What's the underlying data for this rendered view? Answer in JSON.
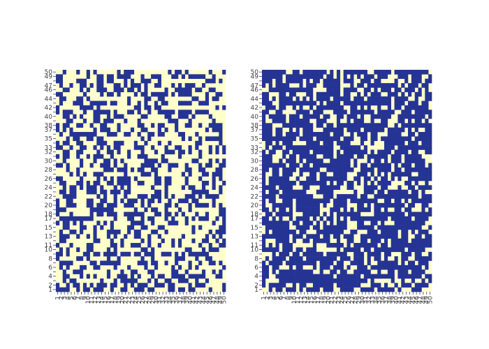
{
  "chart_data": [
    {
      "type": "heatmap",
      "title": "",
      "xlabel": "",
      "ylabel": "",
      "x_ticks": [
        "1",
        "2",
        "3",
        "4",
        "5",
        "6",
        "7",
        "8",
        "9",
        "10",
        "11",
        "12",
        "13",
        "14",
        "15",
        "16",
        "17",
        "18",
        "19",
        "20",
        "21",
        "22",
        "23",
        "24",
        "25",
        "26",
        "27",
        "28",
        "29",
        "30",
        "31",
        "32",
        "33",
        "34",
        "35",
        "36",
        "37",
        "38",
        "39",
        "40",
        "41",
        "42",
        "43",
        "44",
        "45",
        "46",
        "47",
        "48",
        "49",
        "50"
      ],
      "y_ticks": [
        "1",
        "2",
        "3",
        "4",
        "5",
        "6",
        "7",
        "8",
        "9",
        "10",
        "11",
        "12",
        "13",
        "14",
        "15",
        "16",
        "17",
        "18",
        "19",
        "20",
        "21",
        "22",
        "23",
        "24",
        "25",
        "26",
        "27",
        "28",
        "29",
        "30",
        "31",
        "32",
        "33",
        "34",
        "35",
        "36",
        "37",
        "38",
        "39",
        "40",
        "41",
        "42",
        "43",
        "44",
        "45",
        "46",
        "47",
        "48",
        "49",
        "50"
      ],
      "y_tick_labels_shown": [
        "1",
        "2",
        "4",
        "6",
        "8",
        "10",
        "11",
        "13",
        "15",
        "17",
        "18",
        "20",
        "22",
        "24",
        "26",
        "28",
        "30",
        "32",
        "33",
        "35",
        "37",
        "38",
        "40",
        "42",
        "44",
        "46",
        "47",
        "49",
        "50"
      ],
      "value_colors": {
        "0": "#ffffcc",
        "1": "#253494"
      },
      "density_estimate": 0.42,
      "diagonal_forced": false,
      "seed": 11
    },
    {
      "type": "heatmap",
      "title": "",
      "xlabel": "",
      "ylabel": "",
      "x_ticks": [
        "1",
        "2",
        "3",
        "4",
        "5",
        "6",
        "7",
        "8",
        "9",
        "10",
        "11",
        "12",
        "13",
        "14",
        "15",
        "16",
        "17",
        "18",
        "19",
        "20",
        "21",
        "22",
        "23",
        "24",
        "25",
        "26",
        "27",
        "28",
        "29",
        "30",
        "31",
        "32",
        "33",
        "34",
        "35",
        "36",
        "37",
        "38",
        "39",
        "40",
        "41",
        "42",
        "43",
        "44",
        "45",
        "46",
        "47",
        "48",
        "49",
        "50"
      ],
      "y_ticks": [
        "1",
        "2",
        "3",
        "4",
        "5",
        "6",
        "7",
        "8",
        "9",
        "10",
        "11",
        "12",
        "13",
        "14",
        "15",
        "16",
        "17",
        "18",
        "19",
        "20",
        "21",
        "22",
        "23",
        "24",
        "25",
        "26",
        "27",
        "28",
        "29",
        "30",
        "31",
        "32",
        "33",
        "34",
        "35",
        "36",
        "37",
        "38",
        "39",
        "40",
        "41",
        "42",
        "43",
        "44",
        "45",
        "46",
        "47",
        "48",
        "49",
        "50"
      ],
      "y_tick_labels_shown": [
        "1",
        "2",
        "4",
        "6",
        "8",
        "10",
        "11",
        "13",
        "15",
        "17",
        "18",
        "20",
        "22",
        "24",
        "26",
        "28",
        "30",
        "32",
        "33",
        "35",
        "37",
        "38",
        "40",
        "42",
        "44",
        "46",
        "47",
        "49",
        "50"
      ],
      "value_colors": {
        "0": "#ffffcc",
        "1": "#253494"
      },
      "density_estimate": 0.72,
      "diagonal_forced": true,
      "seed": 29
    }
  ]
}
